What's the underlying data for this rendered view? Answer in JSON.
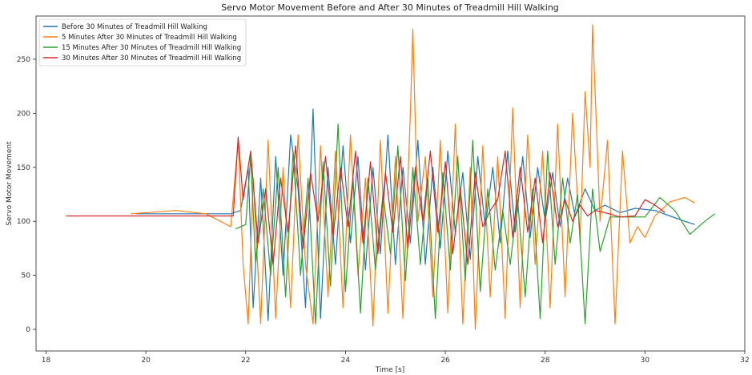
{
  "chart_data": {
    "type": "line",
    "title": "Servo Motor Movement Before and After 30 Minutes of Treadmill Hill Walking",
    "xlabel": "Time [s]",
    "ylabel": "Servo Motor Movement",
    "xlim": [
      17.8,
      32.0
    ],
    "ylim": [
      -20,
      290
    ],
    "xticks": [
      18,
      20,
      22,
      24,
      26,
      28,
      30,
      32
    ],
    "yticks": [
      0,
      50,
      100,
      150,
      200,
      250
    ],
    "grid": false,
    "legend_position": "top-left",
    "series": [
      {
        "name": "Before 30 Minutes of Treadmill Hill Walking",
        "color": "#1f77b4",
        "x": [
          19.8,
          21.7,
          21.9,
          22.05,
          22.15,
          22.3,
          22.45,
          22.6,
          22.75,
          22.9,
          23.05,
          23.2,
          23.35,
          23.5,
          23.65,
          23.8,
          23.95,
          24.1,
          24.25,
          24.4,
          24.55,
          24.7,
          24.85,
          25.0,
          25.15,
          25.3,
          25.45,
          25.6,
          25.75,
          25.9,
          26.05,
          26.2,
          26.35,
          26.5,
          26.65,
          26.8,
          26.95,
          27.1,
          27.25,
          27.4,
          27.55,
          27.7,
          27.85,
          28.0,
          28.15,
          28.3,
          28.45,
          28.6,
          28.8,
          29.0,
          29.2,
          29.5,
          29.8,
          30.2,
          30.5,
          30.8,
          31.0
        ],
        "values": [
          107,
          107,
          110,
          150,
          20,
          140,
          8,
          160,
          50,
          180,
          130,
          20,
          204,
          10,
          150,
          60,
          170,
          80,
          160,
          55,
          150,
          70,
          180,
          60,
          150,
          80,
          175,
          60,
          150,
          75,
          165,
          90,
          145,
          65,
          160,
          95,
          150,
          80,
          165,
          90,
          160,
          85,
          150,
          100,
          145,
          95,
          140,
          105,
          130,
          110,
          115,
          108,
          112,
          110,
          105,
          100,
          97
        ]
      },
      {
        "name": "5 Minutes After 30 Minutes of Treadmill Hill Walking",
        "color": "#ff7f0e",
        "x": [
          19.7,
          20.6,
          21.2,
          21.7,
          21.85,
          21.95,
          22.05,
          22.15,
          22.3,
          22.45,
          22.6,
          22.75,
          22.9,
          23.05,
          23.2,
          23.35,
          23.5,
          23.65,
          23.8,
          23.95,
          24.1,
          24.25,
          24.4,
          24.55,
          24.7,
          24.85,
          25.0,
          25.15,
          25.3,
          25.35,
          25.45,
          25.6,
          25.75,
          25.9,
          26.05,
          26.2,
          26.35,
          26.5,
          26.6,
          26.75,
          26.9,
          27.05,
          27.2,
          27.35,
          27.5,
          27.65,
          27.8,
          27.95,
          28.1,
          28.25,
          28.4,
          28.55,
          28.7,
          28.8,
          28.9,
          28.95,
          29.1,
          29.25,
          29.4,
          29.55,
          29.7,
          29.85,
          30.0,
          30.2,
          30.5,
          30.8,
          31.0
        ],
        "values": [
          107,
          110,
          107,
          95,
          175,
          60,
          5,
          140,
          5,
          175,
          10,
          150,
          20,
          180,
          60,
          5,
          170,
          30,
          165,
          20,
          180,
          50,
          140,
          3,
          175,
          15,
          160,
          10,
          200,
          278,
          100,
          160,
          30,
          175,
          15,
          190,
          5,
          150,
          0,
          170,
          30,
          160,
          10,
          205,
          20,
          180,
          60,
          165,
          20,
          190,
          30,
          200,
          80,
          220,
          150,
          282,
          100,
          175,
          5,
          165,
          80,
          95,
          85,
          105,
          118,
          122,
          117
        ]
      },
      {
        "name": "15 Minutes After 30 Minutes of Treadmill Hill Walking",
        "color": "#2ca02c",
        "x": [
          21.8,
          22.0,
          22.1,
          22.2,
          22.35,
          22.5,
          22.65,
          22.8,
          22.95,
          23.1,
          23.25,
          23.4,
          23.55,
          23.7,
          23.85,
          24.0,
          24.15,
          24.3,
          24.45,
          24.6,
          24.75,
          24.9,
          25.05,
          25.2,
          25.35,
          25.5,
          25.65,
          25.8,
          25.95,
          26.1,
          26.25,
          26.4,
          26.55,
          26.7,
          26.85,
          27.0,
          27.15,
          27.3,
          27.45,
          27.6,
          27.75,
          27.9,
          28.05,
          28.2,
          28.35,
          28.5,
          28.65,
          28.8,
          28.95,
          29.1,
          29.3,
          29.6,
          30.0,
          30.3,
          30.6,
          30.9,
          31.2,
          31.4
        ],
        "values": [
          93,
          97,
          160,
          60,
          130,
          50,
          150,
          30,
          165,
          50,
          140,
          5,
          155,
          40,
          190,
          35,
          140,
          15,
          140,
          55,
          125,
          70,
          170,
          45,
          150,
          60,
          140,
          10,
          145,
          55,
          160,
          45,
          175,
          35,
          130,
          55,
          110,
          60,
          120,
          30,
          130,
          10,
          165,
          60,
          140,
          80,
          125,
          5,
          130,
          72,
          104,
          104,
          104,
          122,
          110,
          88,
          100,
          107
        ]
      },
      {
        "name": "30 Minutes After 30 Minutes of Treadmill Hill Walking",
        "color": "#d62728",
        "x": [
          18.4,
          19.5,
          21.0,
          21.75,
          21.85,
          21.95,
          22.1,
          22.25,
          22.4,
          22.55,
          22.7,
          22.85,
          23.0,
          23.15,
          23.3,
          23.45,
          23.6,
          23.75,
          23.9,
          24.05,
          24.2,
          24.35,
          24.5,
          24.65,
          24.8,
          24.95,
          25.1,
          25.25,
          25.4,
          25.55,
          25.7,
          25.85,
          26.0,
          26.15,
          26.3,
          26.45,
          26.6,
          26.75,
          26.9,
          27.05,
          27.2,
          27.35,
          27.5,
          27.65,
          27.8,
          27.95,
          28.1,
          28.25,
          28.4,
          28.55,
          28.7,
          28.85,
          29.0,
          29.2,
          29.5,
          29.8,
          30.0,
          30.2,
          30.4
        ],
        "values": [
          105,
          105,
          105,
          105,
          178,
          120,
          165,
          80,
          130,
          60,
          140,
          90,
          170,
          75,
          145,
          100,
          160,
          85,
          150,
          95,
          165,
          80,
          155,
          70,
          145,
          90,
          160,
          75,
          150,
          100,
          165,
          90,
          155,
          70,
          130,
          60,
          145,
          95,
          110,
          120,
          165,
          85,
          150,
          90,
          140,
          80,
          145,
          95,
          120,
          100,
          115,
          105,
          110,
          108,
          104,
          105,
          120,
          115,
          108
        ]
      }
    ]
  }
}
